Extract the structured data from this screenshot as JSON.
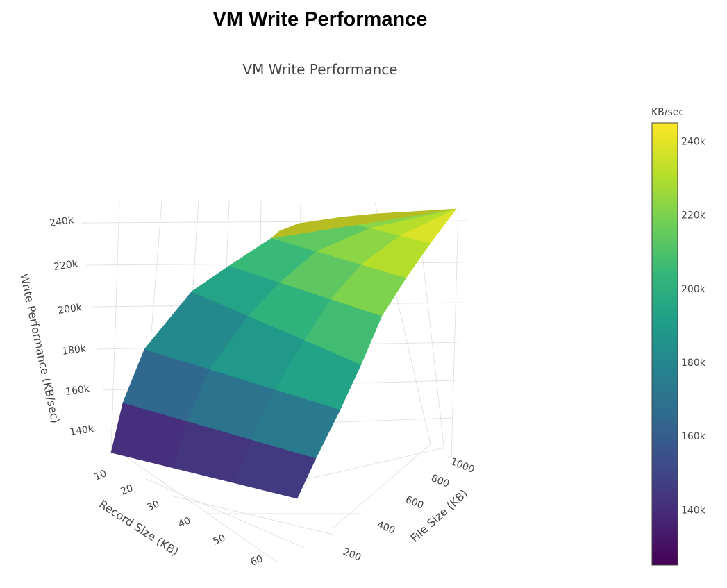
{
  "page_title": "VM Write Performance",
  "chart_data": {
    "type": "surface",
    "title": "VM Write Performance",
    "axes": {
      "x": {
        "label": "File Size (KB)",
        "ticks": [
          200,
          400,
          600,
          800,
          1000
        ],
        "range": [
          100,
          1024
        ]
      },
      "y": {
        "label": "Record Size (KB)",
        "ticks": [
          10,
          20,
          30,
          40,
          50,
          60
        ],
        "range": [
          4,
          64
        ]
      },
      "z": {
        "label": "Write Performance (KB/sec)",
        "ticks": [
          "140k",
          "160k",
          "180k",
          "200k",
          "220k",
          "240k"
        ],
        "tick_values": [
          140000,
          160000,
          180000,
          200000,
          220000,
          240000
        ],
        "range": [
          125000,
          245000
        ]
      }
    },
    "file_sizes": [
      128,
      256,
      384,
      512,
      640,
      768,
      896,
      1024
    ],
    "record_sizes": [
      4,
      16,
      32,
      64
    ],
    "z_values": [
      [
        127000,
        152000,
        170000,
        184000,
        196000,
        207000,
        213000,
        226000
      ],
      [
        128000,
        158000,
        180000,
        193000,
        205000,
        216000,
        223000,
        232000
      ],
      [
        128000,
        160000,
        185000,
        199000,
        212000,
        225000,
        232000,
        240000
      ],
      [
        132000,
        163000,
        188000,
        203000,
        217000,
        232000,
        238000,
        245000
      ]
    ],
    "colorscale": "Viridis",
    "colorbar": {
      "title": "KB/sec",
      "ticks": [
        "140k",
        "160k",
        "180k",
        "200k",
        "220k",
        "240k"
      ],
      "tick_values": [
        140000,
        160000,
        180000,
        200000,
        220000,
        240000
      ],
      "range": [
        125000,
        245000
      ]
    },
    "colors": {
      "low": "#440154",
      "mid": "#21918c",
      "high": "#fde725"
    }
  }
}
